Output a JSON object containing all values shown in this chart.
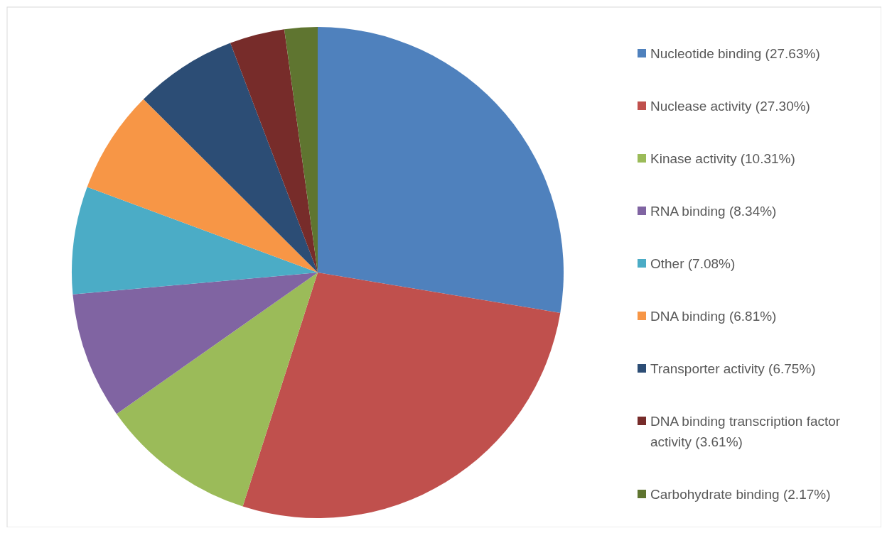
{
  "chart_data": {
    "type": "pie",
    "categories": [
      "Nucleotide binding (27.63%)",
      "Nuclease activity (27.30%)",
      "Kinase activity (10.31%)",
      "RNA binding (8.34%)",
      "Other (7.08%)",
      "DNA binding (6.81%)",
      "Transporter activity (6.75%)",
      "DNA binding transcription factor activity (3.61%)",
      "Carbohydrate binding (2.17%)"
    ],
    "values": [
      27.63,
      27.3,
      10.31,
      8.34,
      7.08,
      6.81,
      6.75,
      3.61,
      2.17
    ],
    "colors": [
      "#4f81bd",
      "#c0504d",
      "#9bbb59",
      "#8064a2",
      "#4bacc6",
      "#f79646",
      "#2c4d75",
      "#772c2a",
      "#5f7530"
    ],
    "legend": "right"
  }
}
